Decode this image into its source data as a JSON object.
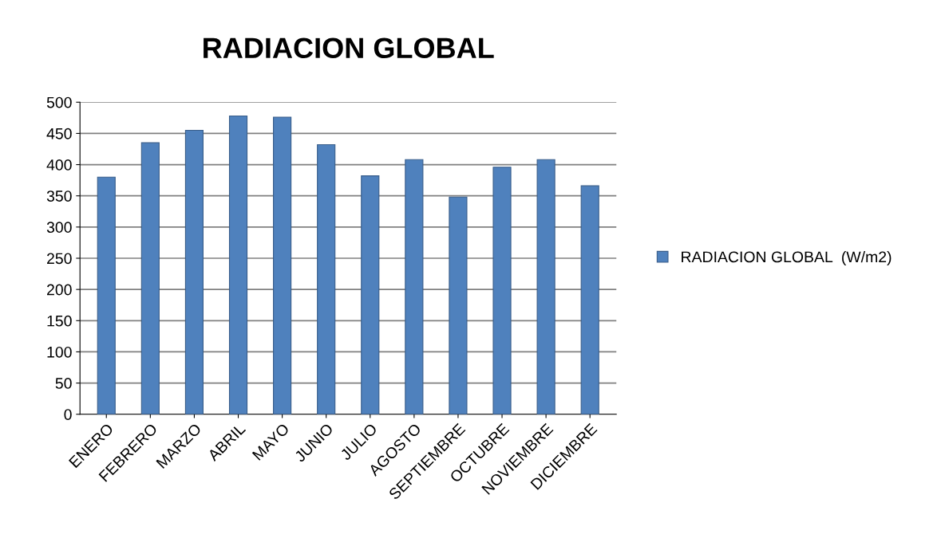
{
  "chart_data": {
    "type": "bar",
    "title": "RADIACION GLOBAL",
    "categories": [
      "ENERO",
      "FEBRERO",
      "MARZO",
      "ABRIL",
      "MAYO",
      "JUNIO",
      "JULIO",
      "AGOSTO",
      "SEPTIEMBRE",
      "OCTUBRE",
      "NOVIEMBRE",
      "DICIEMBRE"
    ],
    "series": [
      {
        "name": "RADIACION GLOBAL  (W/m2)",
        "color": "#4f81bd",
        "values": [
          380,
          435,
          455,
          478,
          476,
          432,
          382,
          408,
          348,
          396,
          408,
          366
        ]
      }
    ],
    "ylim": [
      0,
      500
    ],
    "yticks": [
      0,
      50,
      100,
      150,
      200,
      250,
      300,
      350,
      400,
      450,
      500
    ],
    "grid": "y",
    "legend": "right"
  }
}
